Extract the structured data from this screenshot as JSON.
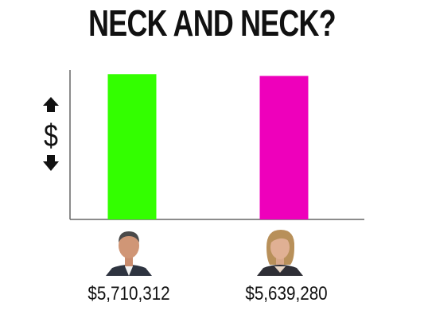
{
  "title": "NECK AND NECK?",
  "chart_data": {
    "type": "bar",
    "title": "NECK AND NECK?",
    "xlabel": "",
    "ylabel": "$",
    "ylim": [
      0,
      7000000
    ],
    "grid": false,
    "categories": [
      "$5,710,312",
      "$5,639,280"
    ],
    "values": [
      5710312,
      5639280
    ],
    "colors": [
      "#33ff00",
      "#ee00bb"
    ],
    "value_labels": [
      "$5,710,312",
      "$5,639,280"
    ]
  },
  "candidates": [
    {
      "amount": "$5,710,312",
      "photo": "man-portrait"
    },
    {
      "amount": "$5,639,280",
      "photo": "woman-portrait"
    }
  ],
  "axis_icon": "dollar-up-down-arrows-icon"
}
